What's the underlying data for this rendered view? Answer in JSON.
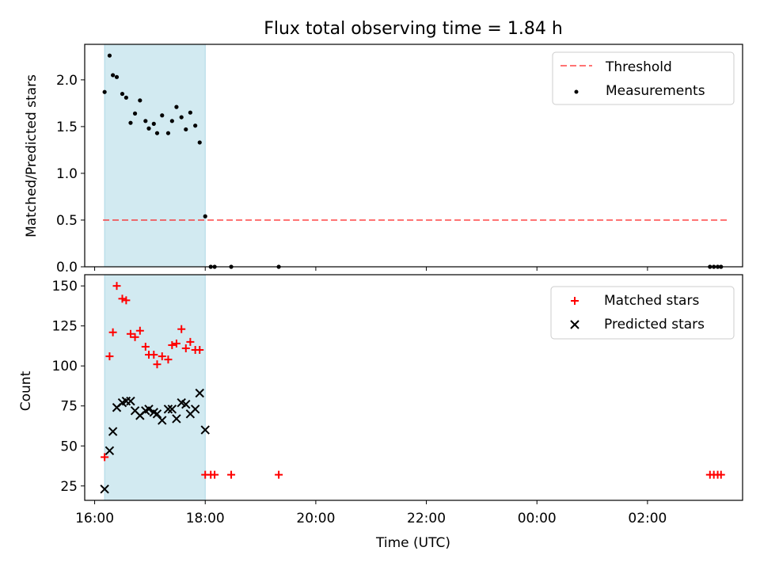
{
  "title": "Flux total observing time = 1.84 h",
  "colors": {
    "span": "#add8e6",
    "threshold": "#ff0000",
    "measurements": "#000000",
    "matched": "#ff0000",
    "predicted": "#000000"
  },
  "chart_data": [
    {
      "type": "scatter",
      "panel": "top",
      "ylabel": "Matched/Predicted stars",
      "ylim": [
        0,
        2.38
      ],
      "yticks": [
        "0.0",
        "0.5",
        "1.0",
        "1.5",
        "2.0"
      ],
      "xlim_hours": [
        15.82,
        27.72
      ],
      "highlight_span_hours": [
        16.18,
        18.0
      ],
      "legend_position": "top-right",
      "legend": [
        "Threshold",
        "Measurements"
      ],
      "threshold": {
        "name": "Threshold",
        "value": 0.5,
        "x_start_hours": 16.15,
        "x_end_hours": 27.45
      },
      "series": [
        {
          "name": "Measurements",
          "x_hours": [
            16.18,
            16.27,
            16.33,
            16.4,
            16.5,
            16.57,
            16.65,
            16.73,
            16.82,
            16.92,
            16.98,
            17.07,
            17.13,
            17.22,
            17.33,
            17.4,
            17.48,
            17.57,
            17.65,
            17.73,
            17.82,
            17.9,
            18.0,
            18.1,
            18.17,
            18.47,
            19.33,
            27.13,
            27.2,
            27.27,
            27.33
          ],
          "y": [
            1.87,
            2.26,
            2.05,
            2.03,
            1.85,
            1.81,
            1.54,
            1.64,
            1.78,
            1.56,
            1.48,
            1.53,
            1.43,
            1.62,
            1.43,
            1.56,
            1.71,
            1.6,
            1.47,
            1.65,
            1.51,
            1.33,
            0.54,
            0,
            0,
            0,
            0,
            0,
            0,
            0,
            0
          ]
        }
      ]
    },
    {
      "type": "scatter",
      "panel": "bottom",
      "ylabel": "Count",
      "xlabel": "Time (UTC)",
      "ylim": [
        16,
        157
      ],
      "yticks": [
        "25",
        "50",
        "75",
        "100",
        "125",
        "150"
      ],
      "xlim_hours": [
        15.82,
        27.72
      ],
      "xticks": [
        "16:00",
        "18:00",
        "20:00",
        "22:00",
        "00:00",
        "02:00"
      ],
      "highlight_span_hours": [
        16.18,
        18.0
      ],
      "legend_position": "top-right",
      "legend": [
        "Matched stars",
        "Predicted stars"
      ],
      "series": [
        {
          "name": "Matched stars",
          "marker": "+",
          "x_hours": [
            16.18,
            16.27,
            16.33,
            16.4,
            16.5,
            16.57,
            16.65,
            16.73,
            16.82,
            16.92,
            16.98,
            17.07,
            17.13,
            17.22,
            17.33,
            17.4,
            17.48,
            17.57,
            17.65,
            17.73,
            17.82,
            17.9,
            18.0,
            18.1,
            18.17,
            18.47,
            19.33,
            27.13,
            27.2,
            27.27,
            27.33
          ],
          "y": [
            43,
            106,
            121,
            150,
            142,
            141,
            120,
            118,
            122,
            112,
            107,
            107,
            101,
            106,
            104,
            113,
            114,
            123,
            111,
            115,
            110,
            110,
            32,
            32,
            32,
            32,
            32,
            32,
            32,
            32,
            32
          ]
        },
        {
          "name": "Predicted stars",
          "marker": "x",
          "x_hours": [
            16.18,
            16.27,
            16.33,
            16.4,
            16.5,
            16.57,
            16.65,
            16.73,
            16.82,
            16.92,
            16.98,
            17.07,
            17.13,
            17.22,
            17.33,
            17.4,
            17.48,
            17.57,
            17.65,
            17.73,
            17.82,
            17.9,
            18.0
          ],
          "y": [
            23,
            47,
            59,
            74,
            77,
            78,
            78,
            72,
            69,
            72,
            73,
            71,
            70,
            66,
            73,
            73,
            67,
            77,
            76,
            70,
            73,
            83,
            60
          ]
        }
      ]
    }
  ]
}
